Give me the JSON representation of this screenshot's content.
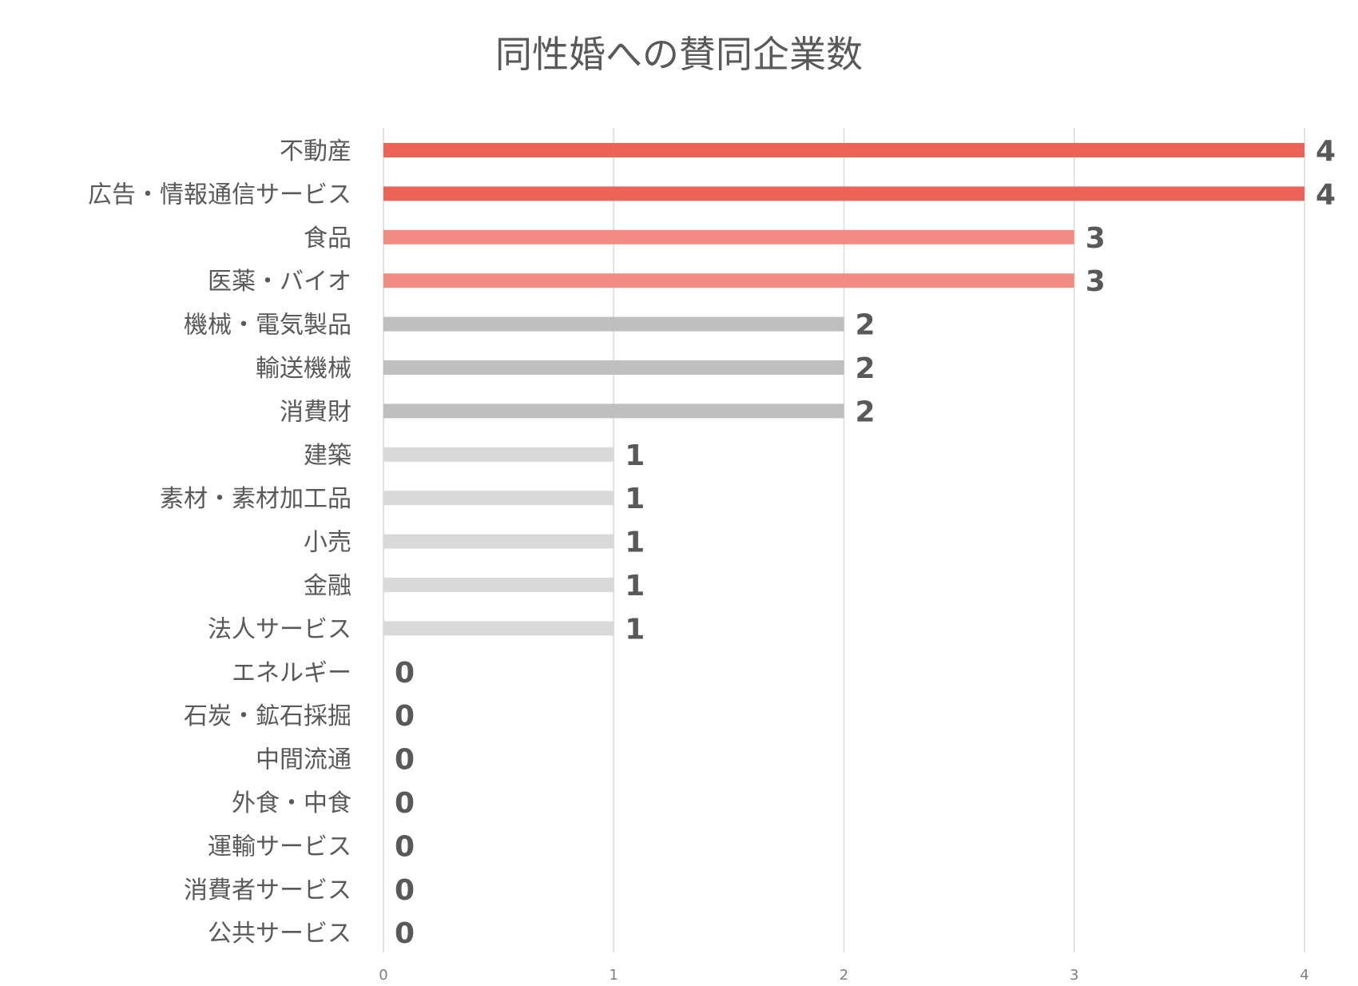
{
  "chart_data": {
    "type": "bar",
    "orientation": "horizontal",
    "title": "同性婚への賛同企業数",
    "xlabel": "",
    "ylabel": "",
    "xlim": [
      0,
      4
    ],
    "xticks": [
      0,
      1,
      2,
      3,
      4
    ],
    "grid": true,
    "categories": [
      "不動産",
      "広告・情報通信サービス",
      "食品",
      "医薬・バイオ",
      "機械・電気製品",
      "輸送機械",
      "消費財",
      "建築",
      "素材・素材加工品",
      "小売",
      "金融",
      "法人サービス",
      "エネルギー",
      "石炭・鉱石採掘",
      "中間流通",
      "外食・中食",
      "運輸サービス",
      "消費者サービス",
      "公共サービス"
    ],
    "values": [
      4,
      4,
      3,
      3,
      2,
      2,
      2,
      1,
      1,
      1,
      1,
      1,
      0,
      0,
      0,
      0,
      0,
      0,
      0
    ],
    "bar_colors": [
      "#ee6358",
      "#ee6358",
      "#f28b84",
      "#f28b84",
      "#bfbfbf",
      "#bfbfbf",
      "#bfbfbf",
      "#d9d9d9",
      "#d9d9d9",
      "#d9d9d9",
      "#d9d9d9",
      "#d9d9d9",
      "#d9d9d9",
      "#d9d9d9",
      "#d9d9d9",
      "#d9d9d9",
      "#d9d9d9",
      "#d9d9d9",
      "#d9d9d9"
    ]
  }
}
